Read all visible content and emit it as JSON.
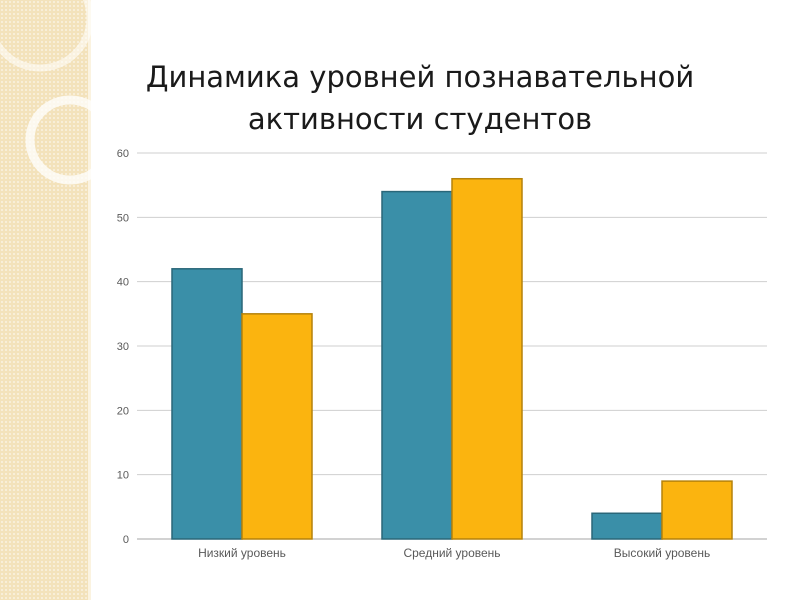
{
  "slide": {
    "colors": {
      "side_band": "#f3e2bb",
      "background": "#ffffff"
    }
  },
  "chart_data": {
    "type": "bar",
    "title_lines": [
      "Динамика уровней познавательной",
      "активности студентов"
    ],
    "categories": [
      "Низкий уровень",
      "Средний уровень",
      "Высокий уровень"
    ],
    "series": [
      {
        "values": [
          42,
          54,
          4
        ],
        "color": "#3a8fa8"
      },
      {
        "values": [
          35,
          56,
          9
        ],
        "color": "#fbb40f"
      }
    ],
    "ylim": [
      0,
      60
    ],
    "yticks": [
      0,
      10,
      20,
      30,
      40,
      50,
      60
    ],
    "grid": true,
    "legend": "none",
    "xlabel": "",
    "ylabel": ""
  }
}
